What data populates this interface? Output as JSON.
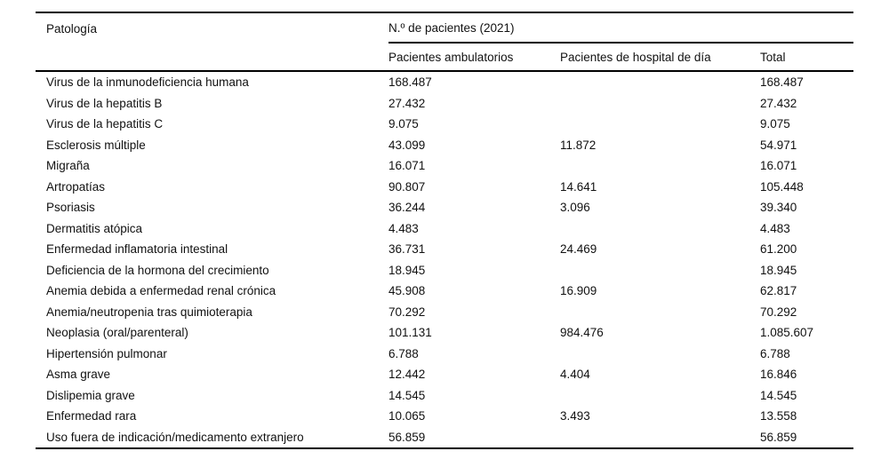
{
  "table": {
    "col1_header": "Patología",
    "span_header": "N.º de pacientes (2021)",
    "sub_headers": [
      "Pacientes ambulatorios",
      "Pacientes de hospital de día",
      "Total"
    ],
    "rows": [
      {
        "pathology": "Virus de la inmunodeficiencia humana",
        "ambulatory": "168.487",
        "day_hospital": "",
        "total": "168.487"
      },
      {
        "pathology": "Virus de la hepatitis B",
        "ambulatory": "27.432",
        "day_hospital": "",
        "total": "27.432"
      },
      {
        "pathology": "Virus de la hepatitis C",
        "ambulatory": "9.075",
        "day_hospital": "",
        "total": "9.075"
      },
      {
        "pathology": "Esclerosis múltiple",
        "ambulatory": "43.099",
        "day_hospital": "11.872",
        "total": "54.971"
      },
      {
        "pathology": "Migraña",
        "ambulatory": "16.071",
        "day_hospital": "",
        "total": "16.071"
      },
      {
        "pathology": "Artropatías",
        "ambulatory": "90.807",
        "day_hospital": "14.641",
        "total": "105.448"
      },
      {
        "pathology": "Psoriasis",
        "ambulatory": "36.244",
        "day_hospital": "3.096",
        "total": "39.340"
      },
      {
        "pathology": "Dermatitis atópica",
        "ambulatory": "4.483",
        "day_hospital": "",
        "total": "4.483"
      },
      {
        "pathology": "Enfermedad inflamatoria intestinal",
        "ambulatory": "36.731",
        "day_hospital": "24.469",
        "total": "61.200"
      },
      {
        "pathology": "Deficiencia de la hormona del crecimiento",
        "ambulatory": "18.945",
        "day_hospital": "",
        "total": "18.945"
      },
      {
        "pathology": "Anemia debida a enfermedad renal crónica",
        "ambulatory": "45.908",
        "day_hospital": "16.909",
        "total": "62.817"
      },
      {
        "pathology": "Anemia/neutropenia tras quimioterapia",
        "ambulatory": "70.292",
        "day_hospital": "",
        "total": "70.292"
      },
      {
        "pathology": "Neoplasia (oral/parenteral)",
        "ambulatory": "101.131",
        "day_hospital": "984.476",
        "total": "1.085.607"
      },
      {
        "pathology": "Hipertensión pulmonar",
        "ambulatory": "6.788",
        "day_hospital": "",
        "total": "6.788"
      },
      {
        "pathology": "Asma grave",
        "ambulatory": "12.442",
        "day_hospital": "4.404",
        "total": "16.846"
      },
      {
        "pathology": "Dislipemia grave",
        "ambulatory": "14.545",
        "day_hospital": "",
        "total": "14.545"
      },
      {
        "pathology": "Enfermedad rara",
        "ambulatory": "10.065",
        "day_hospital": "3.493",
        "total": "13.558"
      },
      {
        "pathology": "Uso fuera de indicación/medicamento extranjero",
        "ambulatory": "56.859",
        "day_hospital": "",
        "total": "56.859"
      }
    ]
  }
}
